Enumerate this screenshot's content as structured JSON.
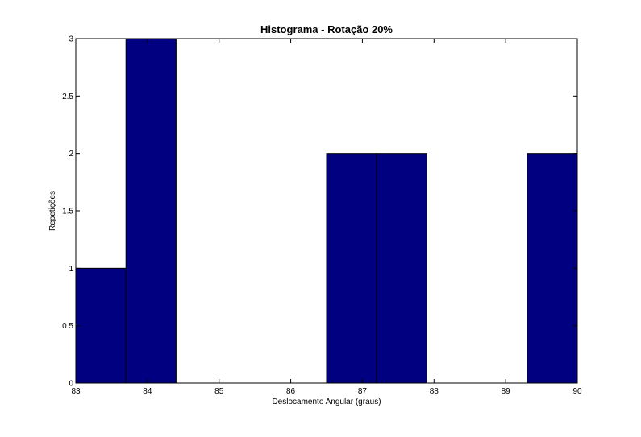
{
  "chart_data": {
    "type": "bar",
    "title": "Histograma - Rotação 20%",
    "xlabel": "Deslocamento Angular (graus)",
    "ylabel": "Repetições",
    "xlim": [
      83,
      90
    ],
    "ylim": [
      0,
      3
    ],
    "x_ticks": [
      "83",
      "84",
      "85",
      "86",
      "87",
      "88",
      "89",
      "90"
    ],
    "y_ticks": [
      "0",
      "0.5",
      "1",
      "1.5",
      "2",
      "2.5",
      "3"
    ],
    "bins": [
      {
        "start": 83.0,
        "end": 83.7,
        "count": 1
      },
      {
        "start": 83.7,
        "end": 84.4,
        "count": 3
      },
      {
        "start": 84.4,
        "end": 85.1,
        "count": 0
      },
      {
        "start": 85.1,
        "end": 85.8,
        "count": 0
      },
      {
        "start": 85.8,
        "end": 86.5,
        "count": 0
      },
      {
        "start": 86.5,
        "end": 87.2,
        "count": 2
      },
      {
        "start": 87.2,
        "end": 87.9,
        "count": 2
      },
      {
        "start": 87.9,
        "end": 88.6,
        "count": 0
      },
      {
        "start": 88.6,
        "end": 89.3,
        "count": 0
      },
      {
        "start": 89.3,
        "end": 90.0,
        "count": 2
      }
    ],
    "bar_color": "#000080",
    "edge_color": "#000000",
    "grid": false,
    "legend": "none"
  }
}
